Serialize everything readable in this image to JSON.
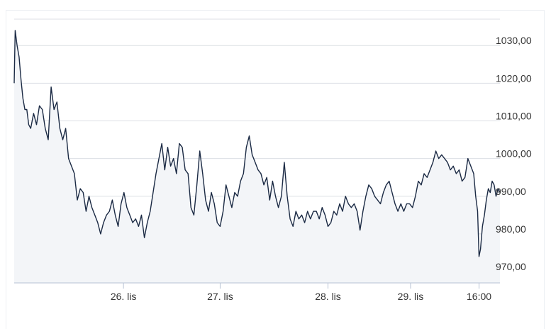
{
  "chart_data": {
    "type": "area",
    "title": "",
    "xlabel": "",
    "ylabel": "",
    "ylim": [
      967,
      1037
    ],
    "grid": true,
    "y_ticks": [
      {
        "value": 970,
        "label": "970,00"
      },
      {
        "value": 980,
        "label": "980,00"
      },
      {
        "value": 990,
        "label": "990,00"
      },
      {
        "value": 1000,
        "label": "1000,00"
      },
      {
        "value": 1010,
        "label": "1010,00"
      },
      {
        "value": 1020,
        "label": "1020,00"
      },
      {
        "value": 1030,
        "label": "1030,00"
      }
    ],
    "x_ticks": [
      {
        "t": 0.225,
        "label": "26. lis"
      },
      {
        "t": 0.424,
        "label": "27. lis"
      },
      {
        "t": 0.646,
        "label": "28. lis"
      },
      {
        "t": 0.816,
        "label": "29. lis"
      },
      {
        "t": 0.957,
        "label": "16:00"
      }
    ],
    "series": [
      {
        "line_color": "#1b2a44",
        "fill_color": "#f3f5f8",
        "points": [
          [
            0.0,
            1020
          ],
          [
            0.002,
            1034
          ],
          [
            0.006,
            1030
          ],
          [
            0.01,
            1027
          ],
          [
            0.014,
            1021
          ],
          [
            0.018,
            1016
          ],
          [
            0.022,
            1013
          ],
          [
            0.026,
            1013
          ],
          [
            0.03,
            1009
          ],
          [
            0.034,
            1008
          ],
          [
            0.04,
            1012
          ],
          [
            0.046,
            1009
          ],
          [
            0.052,
            1014
          ],
          [
            0.058,
            1013
          ],
          [
            0.064,
            1008
          ],
          [
            0.07,
            1005
          ],
          [
            0.076,
            1019
          ],
          [
            0.082,
            1013
          ],
          [
            0.088,
            1015
          ],
          [
            0.094,
            1008
          ],
          [
            0.1,
            1005
          ],
          [
            0.106,
            1008
          ],
          [
            0.112,
            1000
          ],
          [
            0.118,
            998
          ],
          [
            0.124,
            996
          ],
          [
            0.13,
            989
          ],
          [
            0.136,
            992
          ],
          [
            0.142,
            991
          ],
          [
            0.148,
            986
          ],
          [
            0.154,
            990
          ],
          [
            0.16,
            987
          ],
          [
            0.166,
            985
          ],
          [
            0.172,
            983
          ],
          [
            0.178,
            980
          ],
          [
            0.184,
            983
          ],
          [
            0.19,
            985
          ],
          [
            0.196,
            986
          ],
          [
            0.202,
            989
          ],
          [
            0.208,
            985
          ],
          [
            0.214,
            982
          ],
          [
            0.22,
            988
          ],
          [
            0.226,
            991
          ],
          [
            0.232,
            987
          ],
          [
            0.238,
            985
          ],
          [
            0.244,
            983
          ],
          [
            0.25,
            984
          ],
          [
            0.256,
            982
          ],
          [
            0.262,
            985
          ],
          [
            0.268,
            979
          ],
          [
            0.274,
            983
          ],
          [
            0.28,
            986
          ],
          [
            0.286,
            991
          ],
          [
            0.292,
            996
          ],
          [
            0.298,
            1000
          ],
          [
            0.304,
            1004
          ],
          [
            0.31,
            997
          ],
          [
            0.316,
            1003
          ],
          [
            0.322,
            998
          ],
          [
            0.328,
            1000
          ],
          [
            0.334,
            996
          ],
          [
            0.34,
            1004
          ],
          [
            0.346,
            1003
          ],
          [
            0.352,
            997
          ],
          [
            0.358,
            996
          ],
          [
            0.364,
            987
          ],
          [
            0.37,
            985
          ],
          [
            0.376,
            993
          ],
          [
            0.382,
            1002
          ],
          [
            0.388,
            996
          ],
          [
            0.394,
            989
          ],
          [
            0.4,
            986
          ],
          [
            0.406,
            991
          ],
          [
            0.412,
            988
          ],
          [
            0.418,
            983
          ],
          [
            0.424,
            982
          ],
          [
            0.43,
            986
          ],
          [
            0.436,
            993
          ],
          [
            0.442,
            990
          ],
          [
            0.448,
            987
          ],
          [
            0.454,
            991
          ],
          [
            0.46,
            990
          ],
          [
            0.466,
            994
          ],
          [
            0.472,
            996
          ],
          [
            0.478,
            1003
          ],
          [
            0.484,
            1006
          ],
          [
            0.49,
            1001
          ],
          [
            0.496,
            999
          ],
          [
            0.502,
            997
          ],
          [
            0.508,
            996
          ],
          [
            0.514,
            993
          ],
          [
            0.52,
            995
          ],
          [
            0.526,
            989
          ],
          [
            0.532,
            994
          ],
          [
            0.538,
            990
          ],
          [
            0.544,
            987
          ],
          [
            0.55,
            990
          ],
          [
            0.556,
            999
          ],
          [
            0.562,
            990
          ],
          [
            0.568,
            984
          ],
          [
            0.574,
            982
          ],
          [
            0.58,
            986
          ],
          [
            0.586,
            984
          ],
          [
            0.592,
            985
          ],
          [
            0.598,
            983
          ],
          [
            0.604,
            986
          ],
          [
            0.61,
            984
          ],
          [
            0.616,
            986
          ],
          [
            0.622,
            986
          ],
          [
            0.628,
            984
          ],
          [
            0.634,
            987
          ],
          [
            0.64,
            985
          ],
          [
            0.646,
            982
          ],
          [
            0.652,
            983
          ],
          [
            0.658,
            986
          ],
          [
            0.664,
            985
          ],
          [
            0.67,
            988
          ],
          [
            0.676,
            986
          ],
          [
            0.682,
            990
          ],
          [
            0.688,
            988
          ],
          [
            0.694,
            987
          ],
          [
            0.7,
            988
          ],
          [
            0.706,
            986
          ],
          [
            0.712,
            981
          ],
          [
            0.718,
            986
          ],
          [
            0.724,
            990
          ],
          [
            0.73,
            993
          ],
          [
            0.736,
            992
          ],
          [
            0.742,
            990
          ],
          [
            0.748,
            989
          ],
          [
            0.754,
            988
          ],
          [
            0.76,
            991
          ],
          [
            0.766,
            993
          ],
          [
            0.772,
            994
          ],
          [
            0.778,
            991
          ],
          [
            0.784,
            988
          ],
          [
            0.79,
            986
          ],
          [
            0.796,
            988
          ],
          [
            0.802,
            986
          ],
          [
            0.808,
            988
          ],
          [
            0.814,
            988
          ],
          [
            0.82,
            987
          ],
          [
            0.826,
            990
          ],
          [
            0.832,
            994
          ],
          [
            0.838,
            993
          ],
          [
            0.844,
            996
          ],
          [
            0.85,
            995
          ],
          [
            0.856,
            997
          ],
          [
            0.862,
            999
          ],
          [
            0.868,
            1002
          ],
          [
            0.874,
            1000
          ],
          [
            0.88,
            1001
          ],
          [
            0.886,
            1000
          ],
          [
            0.892,
            999
          ],
          [
            0.898,
            997
          ],
          [
            0.904,
            998
          ],
          [
            0.91,
            996
          ],
          [
            0.916,
            997
          ],
          [
            0.922,
            994
          ],
          [
            0.928,
            995
          ],
          [
            0.934,
            1000
          ],
          [
            0.94,
            998
          ],
          [
            0.946,
            996
          ],
          [
            0.95,
            990
          ],
          [
            0.954,
            986
          ],
          [
            0.957,
            974
          ],
          [
            0.96,
            976
          ],
          [
            0.964,
            982
          ],
          [
            0.968,
            985
          ],
          [
            0.972,
            989
          ],
          [
            0.976,
            992
          ],
          [
            0.98,
            991
          ],
          [
            0.984,
            994
          ],
          [
            0.988,
            993
          ],
          [
            0.992,
            990
          ],
          [
            0.996,
            992
          ],
          [
            1.0,
            991
          ]
        ]
      }
    ]
  }
}
